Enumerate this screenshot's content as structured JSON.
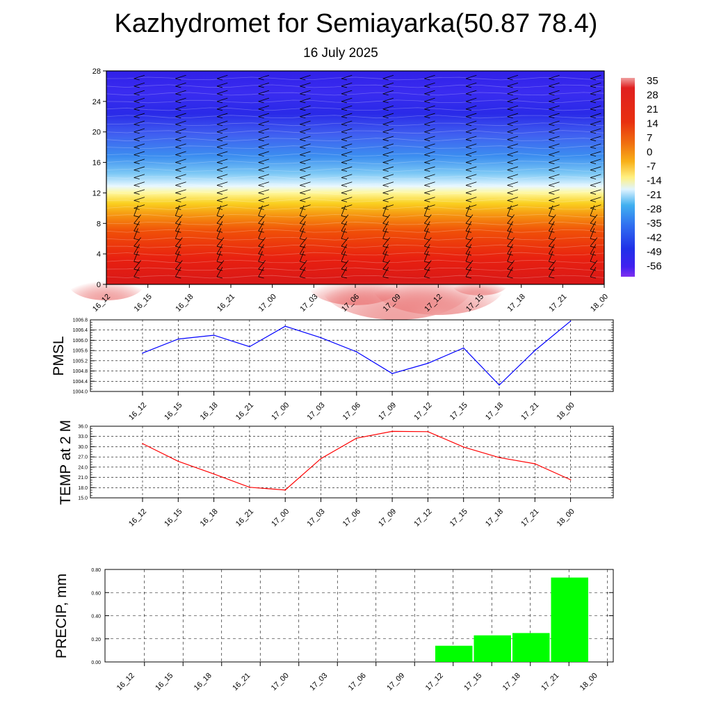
{
  "header": {
    "title": "Kazhydromet for Semiayarka(50.87 78.4)",
    "subtitle": "16 July 2025"
  },
  "time_labels": [
    "16_12",
    "16_15",
    "16_18",
    "16_21",
    "17_00",
    "17_03",
    "17_06",
    "17_09",
    "17_12",
    "17_15",
    "17_18",
    "17_21",
    "18_00"
  ],
  "colors": {
    "pmsl": "#0000ff",
    "temp": "#ff0000",
    "precip": "#00ff00",
    "grid": "#000000"
  },
  "chart_data": [
    {
      "type": "heatmap",
      "title": "",
      "x": [
        "16_12",
        "16_15",
        "16_18",
        "16_21",
        "17_00",
        "17_03",
        "17_06",
        "17_09",
        "17_12",
        "17_15",
        "17_18",
        "17_21",
        "18_00"
      ],
      "ylim": [
        0,
        28
      ],
      "yticks": [
        "0",
        "4",
        "8",
        "12",
        "16",
        "20",
        "24",
        "28"
      ],
      "colorbar": {
        "labels": [
          "35",
          "28",
          "21",
          "14",
          "7",
          "0",
          "-7",
          "-14",
          "-21",
          "-28",
          "-35",
          "-42",
          "-49",
          "-56"
        ],
        "range": [
          -60,
          38
        ]
      },
      "surface_temp": [
        31,
        26,
        22,
        18,
        17,
        27,
        32,
        35,
        34,
        30,
        27,
        25,
        20
      ],
      "wind_barbs": true
    },
    {
      "type": "line",
      "ylabel": "PMSL",
      "x": [
        "16_12",
        "16_15",
        "16_18",
        "16_21",
        "17_00",
        "17_03",
        "17_06",
        "17_09",
        "17_12",
        "17_15",
        "17_18",
        "17_21",
        "18_00"
      ],
      "values": [
        1005.5,
        1006.05,
        1006.2,
        1005.75,
        1006.55,
        1006.1,
        1005.55,
        1004.7,
        1005.1,
        1005.7,
        1004.25,
        1005.6,
        1006.75
      ],
      "ylim": [
        1004.0,
        1006.8
      ],
      "yticks": [
        "1004.0",
        "1004.4",
        "1004.8",
        "1005.2",
        "1005.6",
        "1006.0",
        "1006.4",
        "1006.8"
      ]
    },
    {
      "type": "line",
      "ylabel": "TEMP at 2 M",
      "x": [
        "16_12",
        "16_15",
        "16_18",
        "16_21",
        "17_00",
        "17_03",
        "17_06",
        "17_09",
        "17_12",
        "17_15",
        "17_18",
        "17_21",
        "18_00"
      ],
      "values": [
        30.9,
        25.7,
        22.0,
        18.1,
        17.3,
        26.5,
        32.5,
        34.5,
        34.4,
        29.9,
        26.8,
        25.0,
        20.3
      ],
      "ylim": [
        15.0,
        36.0
      ],
      "yticks": [
        "15.0",
        "18.0",
        "21.0",
        "24.0",
        "27.0",
        "30.0",
        "33.0",
        "36.0"
      ]
    },
    {
      "type": "bar",
      "ylabel": "PRECIP, mm",
      "categories": [
        "16_12",
        "16_15",
        "16_18",
        "16_21",
        "17_00",
        "17_03",
        "17_06",
        "17_09",
        "17_12",
        "17_15",
        "17_18",
        "17_21",
        "18_00"
      ],
      "values": [
        0,
        0,
        0,
        0,
        0,
        0,
        0,
        0,
        0,
        0.14,
        0.23,
        0.25,
        0.73
      ],
      "ylim": [
        0,
        0.8
      ],
      "yticks": [
        "0.00",
        "0.20",
        "0.40",
        "0.60",
        "0.80"
      ]
    }
  ]
}
